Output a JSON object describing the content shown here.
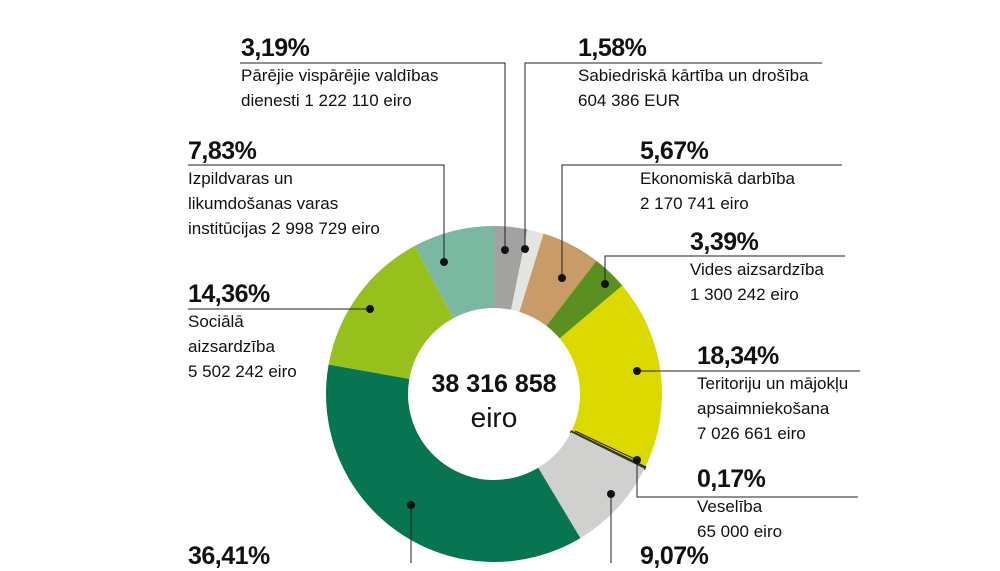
{
  "chart_data": {
    "type": "pie",
    "subtype": "donut",
    "total": "38 316 858",
    "total_unit": "eiro",
    "start": "top, clockwise",
    "slices": [
      {
        "id": "s319",
        "pct": 3.19,
        "pct_label": "3,19%",
        "lines": [
          "Pārējie vispārējie valdības",
          "dienesti 1 222 110 eiro"
        ],
        "color": "#a2a2a0"
      },
      {
        "id": "s158",
        "pct": 1.58,
        "pct_label": "1,58%",
        "lines": [
          "Sabiedriskā kārtība un drošība",
          "604 386 EUR"
        ],
        "color": "#e4e4e2"
      },
      {
        "id": "s567",
        "pct": 5.67,
        "pct_label": "5,67%",
        "lines": [
          "Ekonomiskā darbība",
          "2 170 741 eiro"
        ],
        "color": "#c99b66"
      },
      {
        "id": "s339",
        "pct": 3.39,
        "pct_label": "3,39%",
        "lines": [
          "Vides aizsardzība",
          "1 300 242 eiro"
        ],
        "color": "#5a901f"
      },
      {
        "id": "s1834",
        "pct": 18.34,
        "pct_label": "18,34%",
        "lines": [
          "Teritoriju un mājokļu",
          "apsaimniekošana",
          "7 026 661 eiro"
        ],
        "color": "#dcd900"
      },
      {
        "id": "s017",
        "pct": 0.17,
        "pct_label": "0,17%",
        "lines": [
          "Veselība",
          "65 000 eiro"
        ],
        "color": "#333333"
      },
      {
        "id": "s907",
        "pct": 9.07,
        "pct_label": "9,07%",
        "lines": [],
        "color": "#d0d1cf"
      },
      {
        "id": "s3641",
        "pct": 36.41,
        "pct_label": "36,41%",
        "lines": [],
        "color": "#077552"
      },
      {
        "id": "s1436",
        "pct": 14.36,
        "pct_label": "14,36%",
        "lines": [
          "Sociālā",
          "aizsardzība",
          "5 502 242 eiro"
        ],
        "color": "#98c01d"
      },
      {
        "id": "s783",
        "pct": 7.83,
        "pct_label": "7,83%",
        "lines": [
          "Izpildvaras un",
          "likumdošanas varas",
          "institūcijas 2 998 729 eiro"
        ],
        "color": "#7bb8a2"
      }
    ]
  }
}
